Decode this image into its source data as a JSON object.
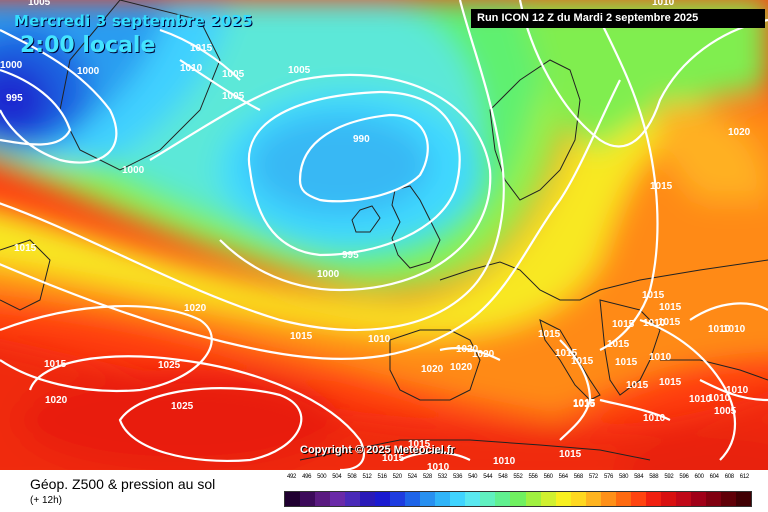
{
  "header": {
    "date": "Mercredi 3 septembre 2025",
    "time": "2:00 locale",
    "run": "Run ICON 12 Z du Mardi 2 septembre 2025"
  },
  "copyright": "Copyright © 2025 Meteociel.fr",
  "legend": {
    "title": "Géop. Z500 & pression au sol",
    "subtitle": "(+ 12h)",
    "ticks": [
      "492",
      "496",
      "500",
      "504",
      "508",
      "512",
      "516",
      "520",
      "524",
      "528",
      "532",
      "536",
      "540",
      "544",
      "548",
      "552",
      "556",
      "560",
      "564",
      "568",
      "572",
      "576",
      "580",
      "584",
      "588",
      "592",
      "596",
      "600",
      "604",
      "608",
      "612"
    ],
    "colors": [
      "#200030",
      "#3c0a5a",
      "#5a1a80",
      "#6a2aa8",
      "#4a2ab8",
      "#2a1ab8",
      "#1a1ad0",
      "#1e3ce0",
      "#1e64e8",
      "#2890f0",
      "#30b4f8",
      "#40d4ff",
      "#5ae8f0",
      "#60f0c0",
      "#60f090",
      "#70f060",
      "#a0f040",
      "#d0f030",
      "#f8f020",
      "#ffd820",
      "#ffb420",
      "#ff9018",
      "#ff6a10",
      "#ff4410",
      "#f02010",
      "#d81010",
      "#c00818",
      "#a00018",
      "#800010",
      "#600008",
      "#400004"
    ]
  },
  "isobars": [
    {
      "label": "1005",
      "region": "top-left"
    },
    {
      "label": "1000",
      "region": "greenland"
    },
    {
      "label": "995",
      "region": "greenland"
    },
    {
      "label": "1000",
      "region": "greenland"
    },
    {
      "label": "1015",
      "region": "north-atlantic"
    },
    {
      "label": "1010",
      "region": "north-atlantic"
    },
    {
      "label": "1005",
      "region": "north-atlantic"
    },
    {
      "label": "1005",
      "region": "north-atlantic"
    },
    {
      "label": "1005",
      "region": "north-atlantic"
    },
    {
      "label": "1000",
      "region": "greenland-south"
    },
    {
      "label": "990",
      "region": "iceland-low"
    },
    {
      "label": "995",
      "region": "ireland-west"
    },
    {
      "label": "1000",
      "region": "atlantic"
    },
    {
      "label": "1015",
      "region": "west-atlantic"
    },
    {
      "label": "1020",
      "region": "mid-atlantic"
    },
    {
      "label": "1015",
      "region": "atlantic"
    },
    {
      "label": "1010",
      "region": "bay-of-biscay"
    },
    {
      "label": "1015",
      "region": "south-atlantic"
    },
    {
      "label": "1025",
      "region": "azores-high"
    },
    {
      "label": "1020",
      "region": "south-atlantic"
    },
    {
      "label": "1025",
      "region": "azores-high"
    },
    {
      "label": "1020",
      "region": "iberia"
    },
    {
      "label": "1020",
      "region": "iberia"
    },
    {
      "label": "1020",
      "region": "iberia"
    },
    {
      "label": "1020",
      "region": "iberia"
    },
    {
      "label": "1015",
      "region": "north-africa"
    },
    {
      "label": "1015",
      "region": "north-africa"
    },
    {
      "label": "1010",
      "region": "north-africa"
    },
    {
      "label": "1010",
      "region": "north-africa"
    },
    {
      "label": "1010",
      "region": "north-africa"
    },
    {
      "label": "1015",
      "region": "central-europe"
    },
    {
      "label": "1015",
      "region": "central-europe"
    },
    {
      "label": "1015",
      "region": "italy"
    },
    {
      "label": "1015",
      "region": "italy"
    },
    {
      "label": "1015",
      "region": "italy"
    },
    {
      "label": "1010",
      "region": "balkans"
    },
    {
      "label": "1015",
      "region": "balkans"
    },
    {
      "label": "1015",
      "region": "balkans"
    },
    {
      "label": "1015",
      "region": "poland"
    },
    {
      "label": "1015",
      "region": "eastern-europe"
    },
    {
      "label": "1010",
      "region": "eastern-europe"
    },
    {
      "label": "1015",
      "region": "eastern-europe"
    },
    {
      "label": "1010",
      "region": "eastern-europe"
    },
    {
      "label": "1010",
      "region": "russia"
    },
    {
      "label": "1015",
      "region": "balkans"
    },
    {
      "label": "1015",
      "region": "greece"
    },
    {
      "label": "1010",
      "region": "turkey"
    },
    {
      "label": "1010",
      "region": "turkey"
    },
    {
      "label": "1005",
      "region": "turkey"
    },
    {
      "label": "1010",
      "region": "east-med"
    },
    {
      "label": "1015",
      "region": "libya"
    },
    {
      "label": "1015",
      "region": "central-med"
    },
    {
      "label": "1020",
      "region": "russia"
    },
    {
      "label": "1015",
      "region": "russia"
    },
    {
      "label": "1010",
      "region": "north-russia"
    }
  ]
}
